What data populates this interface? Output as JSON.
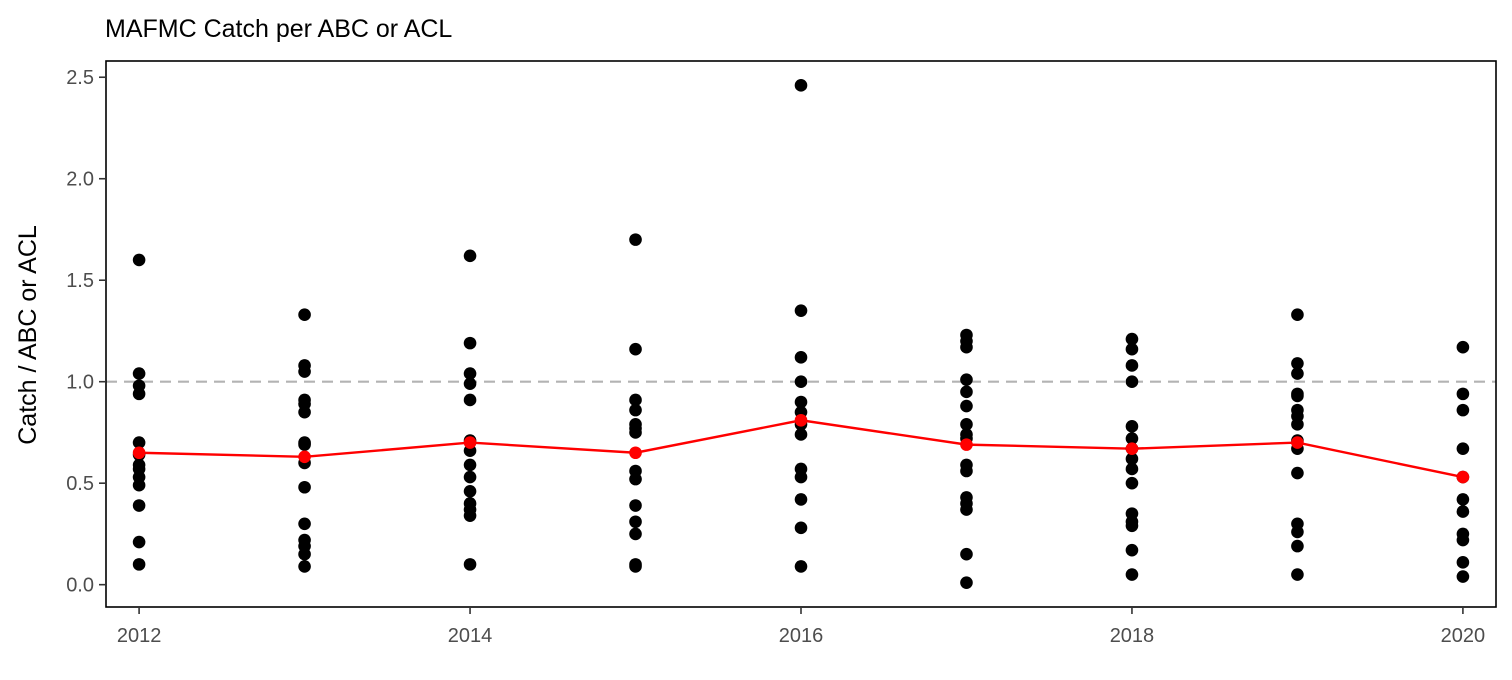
{
  "chart_data": {
    "type": "scatter",
    "title": "MAFMC Catch per ABC or ACL",
    "xlabel": "",
    "ylabel": "Catch / ABC or ACL",
    "xlim": [
      2011.8,
      2020.2
    ],
    "ylim": [
      -0.11,
      2.58
    ],
    "x_ticks": [
      2012,
      2014,
      2016,
      2018,
      2020
    ],
    "y_ticks": [
      0.0,
      0.5,
      1.0,
      1.5,
      2.0,
      2.5
    ],
    "y_tick_labels": [
      "0.0",
      "0.5",
      "1.0",
      "1.5",
      "2.0",
      "2.5"
    ],
    "reference_line": {
      "y": 1.0,
      "style": "dashed",
      "color": "#b3b3b3"
    },
    "grid": false,
    "series": [
      {
        "kind": "points",
        "color": "#000000",
        "points": [
          [
            2012,
            1.6
          ],
          [
            2012,
            1.04
          ],
          [
            2012,
            0.98
          ],
          [
            2012,
            0.94
          ],
          [
            2012,
            0.7
          ],
          [
            2012,
            0.64
          ],
          [
            2012,
            0.59
          ],
          [
            2012,
            0.57
          ],
          [
            2012,
            0.53
          ],
          [
            2012,
            0.49
          ],
          [
            2012,
            0.39
          ],
          [
            2012,
            0.21
          ],
          [
            2012,
            0.1
          ],
          [
            2013,
            1.33
          ],
          [
            2013,
            1.08
          ],
          [
            2013,
            1.05
          ],
          [
            2013,
            0.91
          ],
          [
            2013,
            0.89
          ],
          [
            2013,
            0.85
          ],
          [
            2013,
            0.7
          ],
          [
            2013,
            0.69
          ],
          [
            2013,
            0.6
          ],
          [
            2013,
            0.48
          ],
          [
            2013,
            0.3
          ],
          [
            2013,
            0.22
          ],
          [
            2013,
            0.19
          ],
          [
            2013,
            0.15
          ],
          [
            2013,
            0.09
          ],
          [
            2014,
            1.62
          ],
          [
            2014,
            1.19
          ],
          [
            2014,
            1.04
          ],
          [
            2014,
            0.99
          ],
          [
            2014,
            0.91
          ],
          [
            2014,
            0.71
          ],
          [
            2014,
            0.66
          ],
          [
            2014,
            0.59
          ],
          [
            2014,
            0.53
          ],
          [
            2014,
            0.46
          ],
          [
            2014,
            0.4
          ],
          [
            2014,
            0.37
          ],
          [
            2014,
            0.34
          ],
          [
            2014,
            0.1
          ],
          [
            2015,
            1.7
          ],
          [
            2015,
            1.16
          ],
          [
            2015,
            0.91
          ],
          [
            2015,
            0.86
          ],
          [
            2015,
            0.79
          ],
          [
            2015,
            0.77
          ],
          [
            2015,
            0.75
          ],
          [
            2015,
            0.56
          ],
          [
            2015,
            0.52
          ],
          [
            2015,
            0.39
          ],
          [
            2015,
            0.31
          ],
          [
            2015,
            0.25
          ],
          [
            2015,
            0.1
          ],
          [
            2015,
            0.09
          ],
          [
            2016,
            2.46
          ],
          [
            2016,
            1.35
          ],
          [
            2016,
            1.12
          ],
          [
            2016,
            1.0
          ],
          [
            2016,
            0.9
          ],
          [
            2016,
            0.85
          ],
          [
            2016,
            0.79
          ],
          [
            2016,
            0.74
          ],
          [
            2016,
            0.57
          ],
          [
            2016,
            0.53
          ],
          [
            2016,
            0.42
          ],
          [
            2016,
            0.28
          ],
          [
            2016,
            0.09
          ],
          [
            2017,
            1.23
          ],
          [
            2017,
            1.2
          ],
          [
            2017,
            1.17
          ],
          [
            2017,
            1.01
          ],
          [
            2017,
            0.95
          ],
          [
            2017,
            0.88
          ],
          [
            2017,
            0.79
          ],
          [
            2017,
            0.74
          ],
          [
            2017,
            0.72
          ],
          [
            2017,
            0.59
          ],
          [
            2017,
            0.56
          ],
          [
            2017,
            0.43
          ],
          [
            2017,
            0.4
          ],
          [
            2017,
            0.37
          ],
          [
            2017,
            0.15
          ],
          [
            2017,
            0.01
          ],
          [
            2018,
            1.21
          ],
          [
            2018,
            1.16
          ],
          [
            2018,
            1.08
          ],
          [
            2018,
            1.0
          ],
          [
            2018,
            0.78
          ],
          [
            2018,
            0.72
          ],
          [
            2018,
            0.67
          ],
          [
            2018,
            0.62
          ],
          [
            2018,
            0.57
          ],
          [
            2018,
            0.5
          ],
          [
            2018,
            0.35
          ],
          [
            2018,
            0.31
          ],
          [
            2018,
            0.29
          ],
          [
            2018,
            0.17
          ],
          [
            2018,
            0.05
          ],
          [
            2019,
            1.33
          ],
          [
            2019,
            1.09
          ],
          [
            2019,
            1.04
          ],
          [
            2019,
            0.94
          ],
          [
            2019,
            0.93
          ],
          [
            2019,
            0.86
          ],
          [
            2019,
            0.83
          ],
          [
            2019,
            0.79
          ],
          [
            2019,
            0.71
          ],
          [
            2019,
            0.67
          ],
          [
            2019,
            0.55
          ],
          [
            2019,
            0.3
          ],
          [
            2019,
            0.26
          ],
          [
            2019,
            0.19
          ],
          [
            2019,
            0.05
          ],
          [
            2020,
            1.17
          ],
          [
            2020,
            0.94
          ],
          [
            2020,
            0.86
          ],
          [
            2020,
            0.67
          ],
          [
            2020,
            0.53
          ],
          [
            2020,
            0.42
          ],
          [
            2020,
            0.36
          ],
          [
            2020,
            0.25
          ],
          [
            2020,
            0.22
          ],
          [
            2020,
            0.11
          ],
          [
            2020,
            0.04
          ]
        ]
      },
      {
        "kind": "line",
        "color": "#ff0000",
        "x": [
          2012,
          2013,
          2014,
          2015,
          2016,
          2017,
          2018,
          2019,
          2020
        ],
        "values": [
          0.65,
          0.63,
          0.7,
          0.65,
          0.81,
          0.69,
          0.67,
          0.7,
          0.53
        ]
      }
    ]
  }
}
